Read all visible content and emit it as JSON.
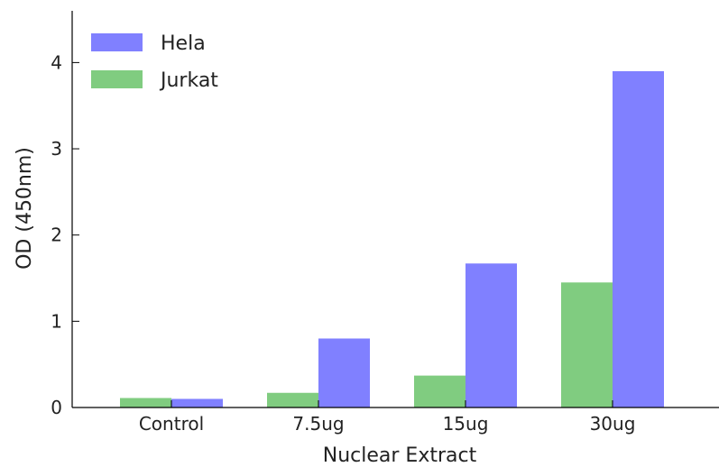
{
  "chart_data": {
    "type": "bar",
    "xlabel": "Nuclear Extract",
    "ylabel": "OD (450nm)",
    "categories": [
      "Control",
      "7.5ug",
      "15ug",
      "30ug"
    ],
    "series": [
      {
        "name": "Jurkat",
        "color": "#80cc80",
        "values": [
          0.11,
          0.17,
          0.37,
          1.45
        ]
      },
      {
        "name": "Hela",
        "color": "#8080ff",
        "values": [
          0.1,
          0.8,
          1.67,
          3.9
        ]
      }
    ],
    "ylim": [
      0,
      4.6
    ],
    "yticks": [
      "0",
      "1",
      "2",
      "3",
      "4"
    ],
    "legend": {
      "position": "top-left",
      "order": [
        "Hela",
        "Jurkat"
      ]
    },
    "grid": false
  }
}
